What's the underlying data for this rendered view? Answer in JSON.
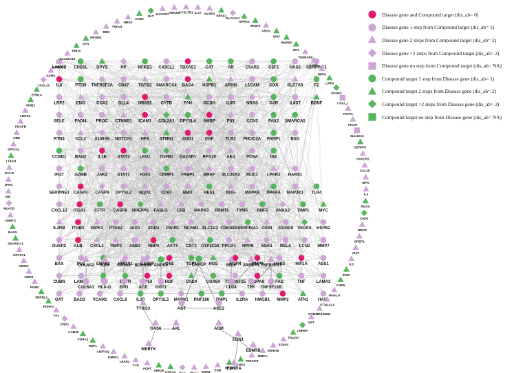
{
  "colors": {
    "disease_compound": "#e0196e",
    "disease_gene": "#cda6d6",
    "compound_target": "#57b55f",
    "edge": "#b9b9b9",
    "edge_dark": "#666666"
  },
  "legend": [
    {
      "shape": "circle",
      "color": "disease_compound",
      "label": "Disease gene and Compound target  (dis_ab= 0)"
    },
    {
      "shape": "circle",
      "color": "disease_gene",
      "label": "Disease gene 1 step from Compound target  (dis_ab= 1)"
    },
    {
      "shape": "triangle",
      "color": "disease_gene",
      "label": "Disease gene 2 steps from Compound target  (dis_ab= 2)"
    },
    {
      "shape": "diamond",
      "color": "disease_gene",
      "label": "Disease gene >2  steps from Compound target  (dis_ab> 2)"
    },
    {
      "shape": "square",
      "color": "disease_gene",
      "label": "Disease gene no step from Compound target  (dis_ab= NA)"
    },
    {
      "shape": "circle",
      "color": "compound_target",
      "label": "Compound target 1 step from Disease gene  (dis_ab= 1)"
    },
    {
      "shape": "triangle",
      "color": "compound_target",
      "label": "Compound target 2 steps from Disease gene  (dis_ab= 2)"
    },
    {
      "shape": "diamond",
      "color": "compound_target",
      "label": "Compound target >2 steps from Disease gene  (dis_ab> 2)"
    },
    {
      "shape": "square",
      "color": "compound_target",
      "label": "Compound target no step from Disease gene  (dis_ab= NA)"
    }
  ],
  "grid_rows": [
    [
      "LAMC2",
      "CHD1L",
      "DPYS",
      "HP",
      "NFKB1",
      "CX3CL1",
      "TBXAS1",
      "CAT",
      "AR",
      "C5AR2",
      "CSF1",
      "HAS2",
      "SERPINC1"
    ],
    [
      "IL6",
      "PTEN",
      "TNFRSF1A",
      "CD47",
      "TGFB2",
      "SMARCA4",
      "BAG4",
      "HSPB1",
      "APOH",
      "L1CAM",
      "SIX5",
      "SLC7A9",
      "F2"
    ],
    [
      "LRP2",
      "ENG",
      "COX2",
      "DLL4",
      "NR0B2",
      "CYTB",
      "FAH",
      "GCDH",
      "IL6R",
      "NRAS",
      "GSR",
      "IL6ST",
      "BDNF"
    ],
    [
      "SELE",
      "PADI4",
      "PROC",
      "CTNNB1",
      "ICAM1",
      "COL2A1",
      "DPYSL4",
      "AMBP",
      "FN1",
      "CCN2",
      "PAX2",
      "SMARCA5",
      ""
    ],
    [
      "RTN4",
      "CCL2",
      "S100A6",
      "NOTCH1",
      "HPX",
      "STMN1",
      "SOD1",
      "EGF",
      "TLR2",
      "PIK3C2A",
      "PARP1",
      "BSG",
      ""
    ],
    [
      "CCND1",
      "BAG2",
      "IL1B",
      "STAT3",
      "LEO1",
      "TGFB1",
      "DAZAP1",
      "RPS19",
      "AK4",
      "PCNA",
      "INS",
      "",
      ""
    ],
    [
      "IFI27",
      "GZMB",
      "JAK2",
      "STAT1",
      "FGF2",
      "CRMP1",
      "FABP1",
      "BRAF",
      "SLC25A3",
      "MUC1",
      "LPAR2",
      "HARS1",
      ""
    ],
    [
      "SERPINE1",
      "CASP3",
      "CASP4",
      "DPYSL2",
      "NQO1",
      "CD63",
      "BMI1",
      "HES1",
      "NOG",
      "MAPK8",
      "PPARA",
      "MAP2K1",
      "TLR4"
    ],
    [
      "CXCL13",
      "ITGA3",
      "CFTR",
      "CASP8",
      "NPEPPS",
      "FASLG",
      "CFB",
      "MAPK3",
      "PRMT5",
      "TYMS",
      "RNF5",
      "ANXA2",
      "TIMP1",
      "MYC"
    ],
    [
      "IL2RB",
      "ITGB3",
      "RIPK3",
      "PTGS2",
      "JAG1",
      "SOD2",
      "C5AR1",
      "NCAM1",
      "SLC1A3",
      "CDKN2A",
      "SERPINA1",
      "CD44",
      "S100A9",
      "VEGFA",
      "HSPB2"
    ],
    [
      "DUSP2",
      "ALB",
      "CXCL2",
      "TIMP2",
      "ASB3",
      "RBP4",
      "AKT1",
      "CST3",
      "CYP2C19",
      "PROX1",
      "NPPB",
      "SGK1",
      "RELA",
      "LCN2",
      "MMP7"
    ],
    [
      "BAX",
      "PLG",
      "ERAP1",
      "HMOX1",
      "IL18BP",
      "C4B",
      "TGF1",
      "HGS",
      "NGFR",
      "MMP9",
      "HAS3",
      "HIF1A",
      "ASS1"
    ],
    [
      "CUBN",
      "LAMB3",
      "TF",
      "EGFR",
      "TP53",
      "HGF",
      "CHD4",
      "COX6A",
      "TNFRSF25",
      "HSPA9",
      "FAS",
      "TNF",
      "LAMA3"
    ],
    [
      "OAT",
      "BAG3",
      "VCAM1",
      "CXCL8",
      "IL10",
      "DPYSL5",
      "MAPK1",
      "RNF186",
      "DMP1",
      "IL2RA",
      "HMGB1",
      "MMP2",
      "ATN1",
      "HAS1"
    ]
  ],
  "ring_labels": [
    "IL1A",
    "NLRP3",
    "SRSF1",
    "SLC13A1",
    "OPRK1",
    "SRSF3",
    "ARSA",
    "MS3",
    "RNPEP",
    "RP1",
    "TNFRSF8",
    "LAP3",
    "NPPA",
    "LVRN",
    "XCNK2",
    "CRCL1",
    "KYAT1",
    "PKLIP",
    "SLC13A3",
    "SERPP1",
    "HAVCR2",
    "CCL20",
    "MPO",
    "IL4",
    "RGCC",
    "CHD1",
    "MRC8",
    "DPEP1",
    "ALPI",
    "IL3",
    "IRGF",
    "CHD5",
    "NAGLU",
    "ST3GAL4",
    "COMMD3-BMI1",
    "GPT",
    "LNPEP",
    "TRADD",
    "SFRP1",
    "WDR35",
    "MMCA",
    "TNFAIP3",
    "ANO1",
    "HPSE",
    "EDN",
    "ESM1",
    "NKG7",
    "OGA",
    "HTR3A",
    "SRP29",
    "AQP1",
    "TYR",
    "LPAR1",
    "DMNTL",
    "ADIPOQ",
    "HSP1",
    "PDHA2",
    "CAB39",
    "DRD1",
    "TA1",
    "PDHA1",
    "SRPBL2",
    "POMC",
    "DMP5",
    "UMOD",
    "NFATC1",
    "SMARCA1",
    "BAG5",
    "DNRT3",
    "MLYCD",
    "MIF",
    "JPH4",
    "DCLR",
    "LT4AH",
    "SPATA2",
    "UBD",
    "PDGFB",
    "LRRK2",
    "MSB2",
    "EPB1A",
    "CXCL10",
    "GZMA",
    "AKR1A1",
    "SLC22A12",
    "PRDX",
    "PTH",
    "PROM1",
    "REN",
    "TRPV4",
    "HBG2",
    "CHD2",
    "DLT",
    "HAVCR1",
    "ABCB1",
    "CYSLTR1"
  ],
  "clusters": [
    {
      "labels": [
        "COL6A2",
        "B2M",
        "GATA3",
        "BDKRB2",
        "ANPEP",
        "ENPEP",
        "SELP",
        "ANGPT1",
        "TNFRSF17"
      ]
    },
    {
      "labels": [
        "COL6A1",
        "HLA-G",
        "EPO",
        "ACE",
        "GGT1",
        "AGT",
        "ACE2",
        "CD24",
        "TEK",
        "TNFSF13B"
      ]
    },
    {
      "labels": [
        "TYRO3",
        "GAS6",
        "AXL",
        "MERTK",
        "ADM",
        "EDN1",
        "EDNRB",
        "EDNRA"
      ]
    }
  ]
}
